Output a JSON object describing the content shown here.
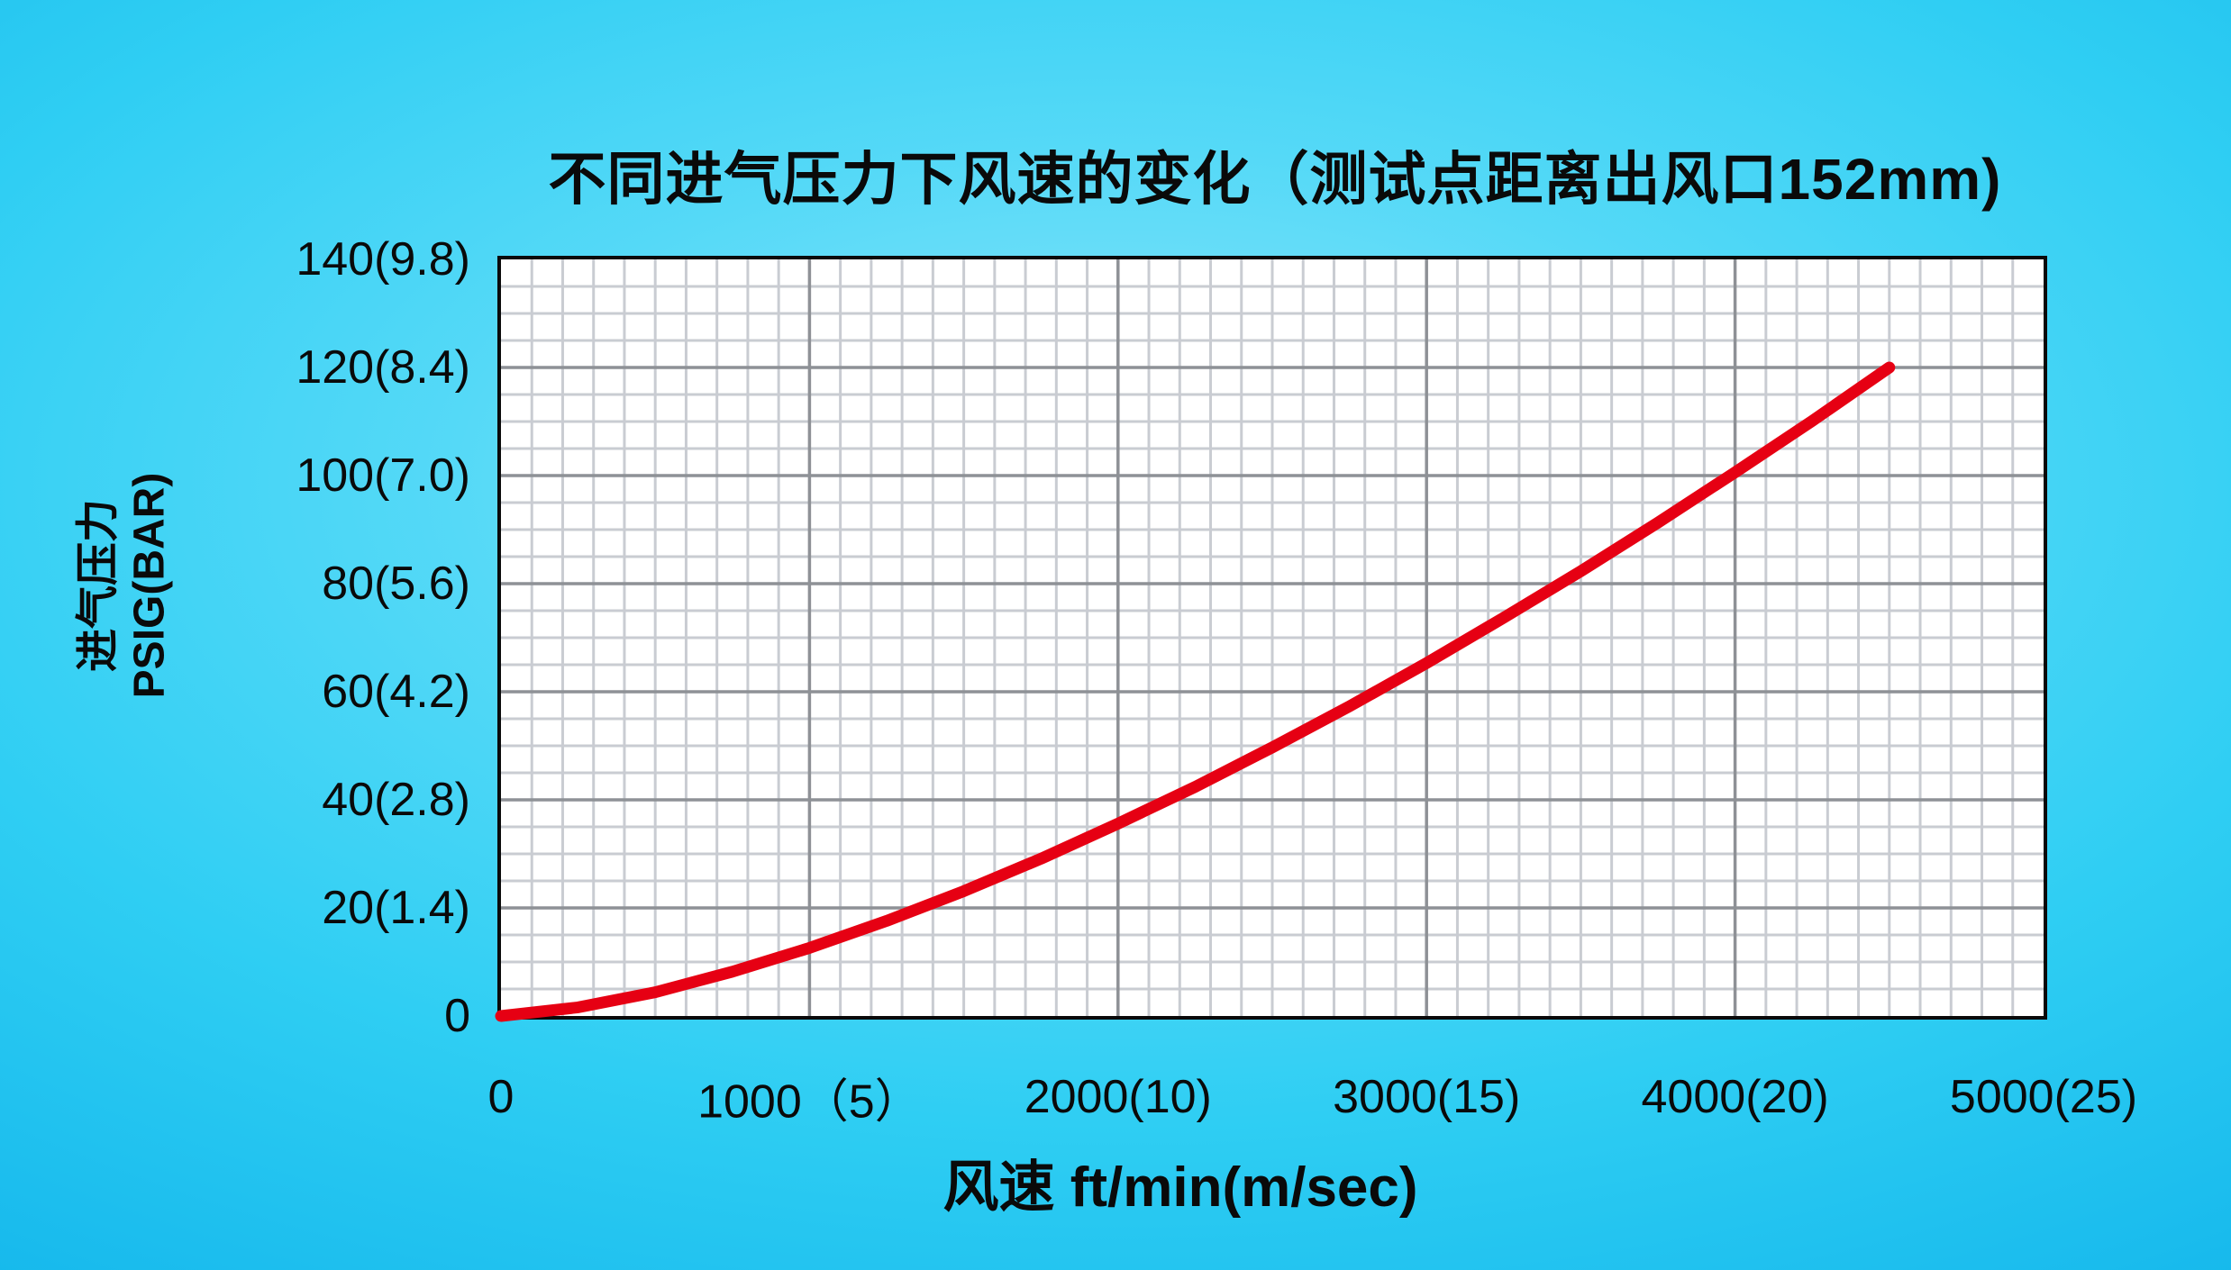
{
  "chart_data": {
    "type": "line",
    "title": "不同进气压力下风速的变化（测试点距离出风口152mm)",
    "xlabel": "风速 ft/min(m/sec)",
    "ylabel": "进气压力 PSIG(BAR)",
    "ylabel_lines": [
      "进气压力",
      "PSIG(BAR)"
    ],
    "xlim": [
      0,
      5000
    ],
    "ylim": [
      0,
      140
    ],
    "x_major_step": 1000,
    "x_minor_step": 100,
    "y_major_step": 20,
    "y_minor_step": 5,
    "grid": "on",
    "legend": "none",
    "x_ticks": [
      {
        "value": 0,
        "label": "0"
      },
      {
        "value": 1000,
        "label": "1000（5）"
      },
      {
        "value": 2000,
        "label": "2000(10)"
      },
      {
        "value": 3000,
        "label": "3000(15)"
      },
      {
        "value": 4000,
        "label": "4000(20)"
      },
      {
        "value": 5000,
        "label": "5000(25)"
      }
    ],
    "y_ticks": [
      {
        "value": 0,
        "label": "0"
      },
      {
        "value": 20,
        "label": "20(1.4)"
      },
      {
        "value": 40,
        "label": "40(2.8)"
      },
      {
        "value": 60,
        "label": "60(4.2)"
      },
      {
        "value": 80,
        "label": "80(5.6)"
      },
      {
        "value": 100,
        "label": "100(7.0)"
      },
      {
        "value": 120,
        "label": "120(8.4)"
      },
      {
        "value": 140,
        "label": "140(9.8)"
      }
    ],
    "series": [
      {
        "color": "#e60013",
        "points": [
          [
            0,
            0
          ],
          [
            250,
            1.6
          ],
          [
            500,
            4.4
          ],
          [
            750,
            8.2
          ],
          [
            1000,
            12.6
          ],
          [
            1250,
            17.6
          ],
          [
            1500,
            23.1
          ],
          [
            1750,
            29.1
          ],
          [
            2000,
            35.6
          ],
          [
            2250,
            42.4
          ],
          [
            2500,
            49.7
          ],
          [
            2750,
            57.3
          ],
          [
            3000,
            65.3
          ],
          [
            3250,
            73.7
          ],
          [
            3500,
            82.3
          ],
          [
            3750,
            91.3
          ],
          [
            4000,
            100.6
          ],
          [
            4250,
            110.1
          ],
          [
            4500,
            120
          ]
        ]
      }
    ]
  },
  "colors": {
    "curve": "#e60013",
    "grid_minor": "#c9ccd2",
    "grid_major": "#8e9196",
    "plot_border": "#0a0a0a",
    "plot_background": "#ffffff",
    "text": "#0a0a0a",
    "background_center": "#8ce6fb",
    "background_mid": "#2fcef3",
    "background_edge": "#07a0e1"
  }
}
